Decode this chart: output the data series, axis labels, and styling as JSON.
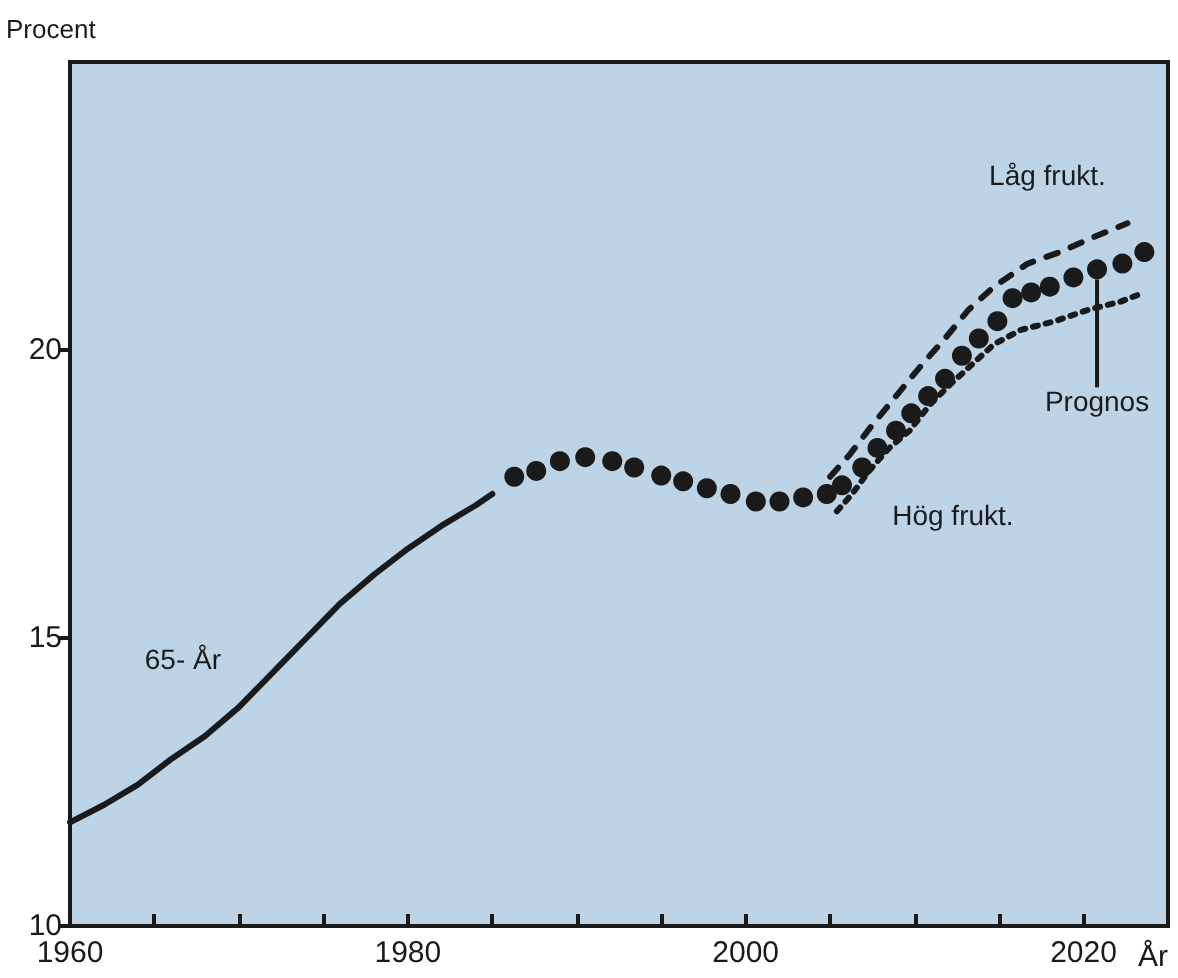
{
  "chart_data": {
    "type": "line",
    "ylabel": "Procent",
    "xlabel": "År",
    "xlim": [
      1960,
      2025
    ],
    "xticks": [
      1960,
      {
        "value": 1965,
        "label": null
      },
      {
        "value": 1970,
        "label": null
      },
      {
        "value": 1975,
        "label": null
      },
      1980,
      {
        "value": 1985,
        "label": null
      },
      {
        "value": 1990,
        "label": null
      },
      {
        "value": 1995,
        "label": null
      },
      2000,
      {
        "value": 2005,
        "label": null
      },
      {
        "value": 2010,
        "label": null
      },
      {
        "value": 2015,
        "label": null
      },
      2020
    ],
    "ylim": [
      10,
      25
    ],
    "yticks": [
      10,
      15,
      20
    ],
    "grid": false,
    "legend": false,
    "series": [
      {
        "name": "65- År",
        "color": "#1a1a1a",
        "line_style": "solid",
        "marker": "none",
        "x": [
          1960,
          1962,
          1964,
          1966,
          1968,
          1970,
          1972,
          1974,
          1976,
          1978,
          1980,
          1982,
          1984,
          1985
        ],
        "values": [
          11.8,
          12.1,
          12.45,
          12.9,
          13.3,
          13.8,
          14.4,
          15.0,
          15.6,
          16.1,
          16.55,
          16.95,
          17.3,
          17.5
        ]
      },
      {
        "name": "Prognos",
        "type": "scatter",
        "color": "#1a1a1a",
        "marker": "circle",
        "x": [
          1986.3,
          1987.6,
          1989,
          1990.5,
          1992.1,
          1993.4,
          1995,
          1996.3,
          1997.7,
          1999.1,
          2000.6,
          2002,
          2003.4,
          2004.8,
          2005.7,
          2006.9,
          2007.8,
          2008.9,
          2009.8,
          2010.8,
          2011.8,
          2012.8,
          2013.8,
          2014.9,
          2015.8,
          2016.9,
          2018,
          2019.4,
          2020.8,
          2022.3,
          2023.6
        ],
        "values": [
          17.8,
          17.9,
          18.07,
          18.14,
          18.07,
          17.96,
          17.82,
          17.72,
          17.6,
          17.5,
          17.37,
          17.37,
          17.44,
          17.5,
          17.65,
          17.96,
          18.3,
          18.6,
          18.9,
          19.2,
          19.5,
          19.9,
          20.2,
          20.5,
          20.9,
          21.0,
          21.1,
          21.26,
          21.4,
          21.5,
          21.7
        ]
      },
      {
        "name": "Låg frukt.",
        "color": "#1a1a1a",
        "line_style": "dashed",
        "marker": "none",
        "x": [
          2005,
          2006.2,
          2007.5,
          2008.9,
          2010.3,
          2011.8,
          2013.2,
          2014.7,
          2016.7,
          2018.6,
          2020.6,
          2022.6
        ],
        "values": [
          17.8,
          18.2,
          18.7,
          19.2,
          19.7,
          20.2,
          20.7,
          21.1,
          21.5,
          21.7,
          21.96,
          22.2
        ]
      },
      {
        "name": "Hög frukt.",
        "color": "#1a1a1a",
        "line_style": "dotted",
        "marker": "none",
        "x": [
          2005.4,
          2006.3,
          2007.3,
          2008.5,
          2009.7,
          2010.9,
          2012.1,
          2013.4,
          2014.7,
          2016.3,
          2018.3,
          2020.3,
          2022.2,
          2023.6
        ],
        "values": [
          17.2,
          17.5,
          17.9,
          18.3,
          18.6,
          19.05,
          19.4,
          19.75,
          20.1,
          20.35,
          20.5,
          20.7,
          20.84,
          21.0
        ]
      }
    ]
  }
}
